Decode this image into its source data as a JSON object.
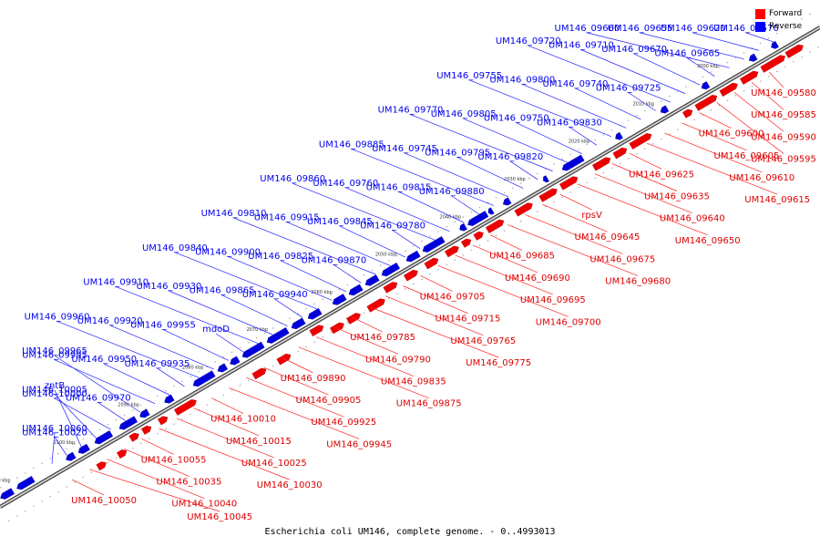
{
  "caption": "Escherichia coli UM146, complete genome. - 0..4993013",
  "legend": [
    {
      "label": "Forward",
      "color": "#ff0000"
    },
    {
      "label": "Reverse",
      "color": "#0000ff"
    }
  ],
  "colors": {
    "forward": "#ee0000",
    "reverse": "#0000dd",
    "backbone": "#888888"
  },
  "ticks": [
    "2000 kbp",
    "2010 kbp",
    "2020 kbp",
    "2030 kbp",
    "2040 kbp",
    "2050 kbp",
    "2060 kbp",
    "2070 kbp",
    "2080 kbp",
    "2090 kbp",
    "2100 kbp",
    "2110 kbp",
    "2120 kbp"
  ],
  "forward_labels": [
    "UM146_09580",
    "UM146_09585",
    "UM146_09590",
    "UM146_09595",
    "UM146_09600",
    "UM146_09605",
    "UM146_09610",
    "UM146_09615",
    "UM146_09625",
    "UM146_09635",
    "UM146_09640",
    "UM146_09650",
    "rpsV",
    "UM146_09645",
    "UM146_09675",
    "UM146_09680",
    "UM146_09685",
    "UM146_09690",
    "UM146_09695",
    "UM146_09700",
    "UM146_09705",
    "UM146_09715",
    "UM146_09765",
    "UM146_09775",
    "UM146_09785",
    "UM146_09790",
    "UM146_09835",
    "UM146_09875",
    "UM146_09890",
    "UM146_09905",
    "UM146_09925",
    "UM146_09945",
    "UM146_10010",
    "UM146_10015",
    "UM146_10025",
    "UM146_10030",
    "UM146_10055",
    "UM146_10035",
    "UM146_10040",
    "UM146_10045",
    "UM146_10050"
  ],
  "reverse_labels": [
    "UM146_09570",
    "UM146_09620",
    "UM146_09655",
    "UM146_09660",
    "UM146_09665",
    "UM146_09670",
    "UM146_09710",
    "UM146_09720",
    "UM146_09725",
    "UM146_09740",
    "UM146_09800",
    "UM146_09755",
    "UM146_09830",
    "UM146_09750",
    "UM146_09805",
    "UM146_09770",
    "UM146_09820",
    "UM146_09795",
    "UM146_09745",
    "UM146_09885",
    "UM146_09880",
    "UM146_09815",
    "UM146_09760",
    "UM146_09860",
    "UM146_09780",
    "UM146_09845",
    "UM146_09915",
    "UM146_09810",
    "UM146_09870",
    "UM146_09825",
    "UM146_09900",
    "UM146_09840",
    "UM146_09940",
    "UM146_09865",
    "UM146_09930",
    "UM146_09910",
    "mdoD",
    "UM146_09955",
    "UM146_09920",
    "UM146_09960",
    "UM146_09935",
    "UM146_09950",
    "UM146_09995",
    "UM146_09965",
    "UM146_09970",
    "UM146_10000",
    "UM146_10005",
    "zntB",
    "UM146_10020",
    "UM146_10060"
  ]
}
